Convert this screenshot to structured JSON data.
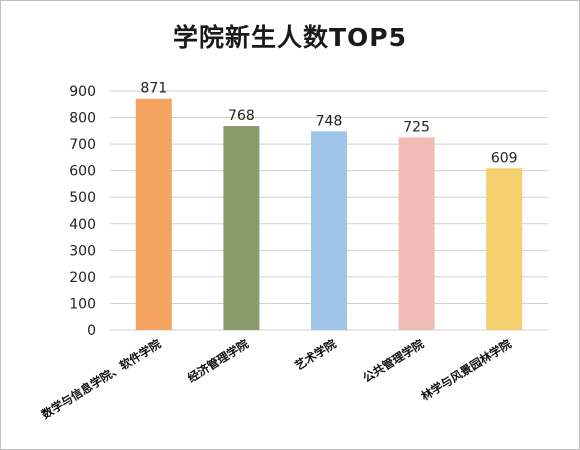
{
  "chart_data": {
    "type": "bar",
    "title": "学院新生人数TOP5",
    "categories": [
      "数学与信息学院、软件学院",
      "经济管理学院",
      "艺术学院",
      "公共管理学院",
      "林学与风景园林学院"
    ],
    "values": [
      871,
      768,
      748,
      725,
      609
    ],
    "colors": [
      "#f4a460",
      "#8a9b6a",
      "#9fc5e8",
      "#f2bcb6",
      "#f5cf6e"
    ],
    "ylim": [
      0,
      900
    ],
    "yticks": [
      0,
      100,
      200,
      300,
      400,
      500,
      600,
      700,
      800,
      900
    ],
    "xlabel": "",
    "ylabel": "",
    "grid": true,
    "legend": "none"
  }
}
